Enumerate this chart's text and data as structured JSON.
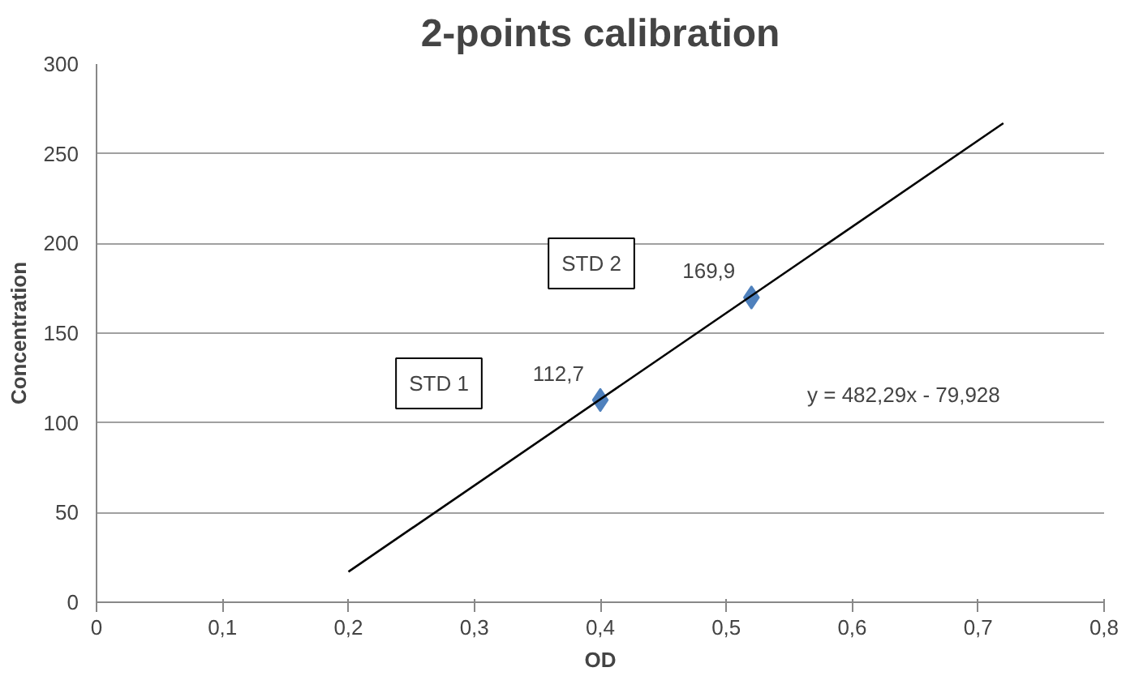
{
  "chart_data": {
    "type": "scatter",
    "title": "2-points calibration",
    "xlabel": "OD",
    "ylabel": "Concentration",
    "x": [
      0.4,
      0.52
    ],
    "series": [
      {
        "color": "#4f81bd",
        "values": [
          112.7,
          169.9
        ],
        "value_labels": [
          "112,7",
          "169,9"
        ],
        "marker": "diamond"
      },
      {
        "type": "line",
        "color": "#000000",
        "x": [
          0.2,
          0.72
        ],
        "values": [
          17,
          267
        ],
        "line_style": "solid"
      }
    ],
    "annotations": [
      "STD 1",
      "STD 2",
      "y = 482,29x - 79,928"
    ],
    "xlim": [
      0,
      0.8
    ],
    "ylim": [
      0,
      300
    ],
    "xticks": [
      0,
      {
        "value": 0.1,
        "label": "0,1"
      },
      {
        "value": 0.2,
        "label": "0,2"
      },
      {
        "value": 0.3,
        "label": "0,3"
      },
      {
        "value": 0.4,
        "label": "0,4"
      },
      {
        "value": 0.5,
        "label": "0,5"
      },
      {
        "value": 0.6,
        "label": "0,6"
      },
      {
        "value": 0.7,
        "label": "0,7"
      },
      {
        "value": 0.8,
        "label": "0,8"
      }
    ],
    "yticks": [
      0,
      50,
      100,
      150,
      200,
      250,
      300
    ],
    "grid": "y"
  }
}
